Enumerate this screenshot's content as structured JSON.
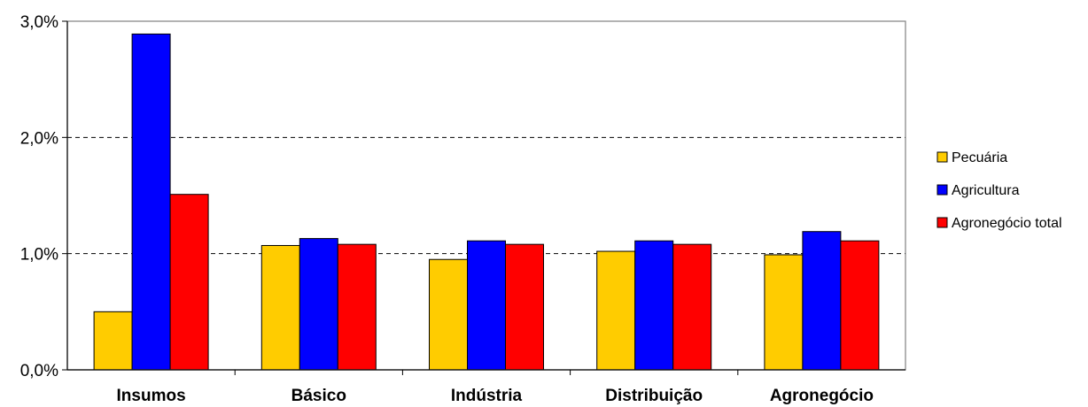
{
  "chart_data": {
    "type": "bar",
    "title": "",
    "xlabel": "",
    "ylabel": "",
    "categories": [
      "Insumos",
      "Básico",
      "Indústria",
      "Distribuição",
      "Agronegócio"
    ],
    "series": [
      {
        "name": "Pecuária",
        "color": "#FFCC00",
        "values": [
          0.5,
          1.07,
          0.95,
          1.02,
          0.99
        ]
      },
      {
        "name": "Agricultura",
        "color": "#0000FF",
        "values": [
          2.89,
          1.13,
          1.11,
          1.11,
          1.19
        ]
      },
      {
        "name": "Agronegócio total",
        "color": "#FF0000",
        "values": [
          1.51,
          1.08,
          1.08,
          1.08,
          1.11
        ]
      }
    ],
    "ylim": [
      0,
      3
    ],
    "yticks": [
      0,
      1,
      2,
      3
    ],
    "ytick_labels": [
      "0,0%",
      "1,0%",
      "2,0%",
      "3,0%"
    ],
    "grid": "horizontal dashed",
    "legend_position": "right"
  }
}
